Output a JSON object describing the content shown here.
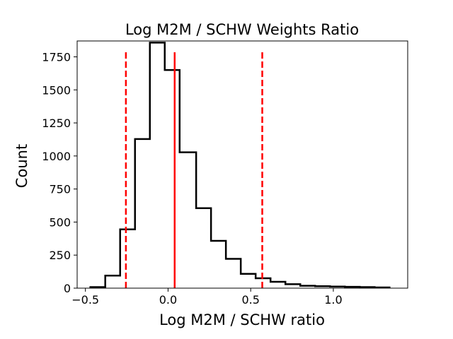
{
  "chart_data": {
    "type": "histogram",
    "title": "Log M2M / SCHW Weights Ratio",
    "xlabel": "Log M2M / SCHW ratio",
    "ylabel": "Count",
    "xlim": [
      -0.55,
      1.45
    ],
    "ylim": [
      0,
      1870
    ],
    "xticks": [
      -0.5,
      0.0,
      0.5,
      1.0
    ],
    "xtick_labels": [
      "−0.5",
      "0.0",
      "0.5",
      "1.0"
    ],
    "yticks": [
      0,
      250,
      500,
      750,
      1000,
      1250,
      1500,
      1750
    ],
    "ytick_labels": [
      "0",
      "250",
      "500",
      "750",
      "1000",
      "1250",
      "1500",
      "1750"
    ],
    "bin_edges": [
      -0.47,
      -0.38,
      -0.29,
      -0.2,
      -0.11,
      -0.02,
      0.07,
      0.17,
      0.26,
      0.35,
      0.44,
      0.53,
      0.62,
      0.71,
      0.8,
      0.89,
      0.98,
      1.07,
      1.16,
      1.25,
      1.34
    ],
    "counts": [
      8,
      95,
      445,
      1128,
      1857,
      1650,
      1028,
      605,
      358,
      222,
      108,
      75,
      48,
      30,
      18,
      15,
      12,
      10,
      8,
      5
    ],
    "series_color": "#000000",
    "reference_lines": [
      {
        "name": "median",
        "x": 0.04,
        "style": "solid",
        "color": "#ff0000"
      },
      {
        "name": "lower",
        "x": -0.255,
        "style": "dashed",
        "color": "#ff0000"
      },
      {
        "name": "upper",
        "x": 0.57,
        "style": "dashed",
        "color": "#ff0000"
      }
    ]
  }
}
